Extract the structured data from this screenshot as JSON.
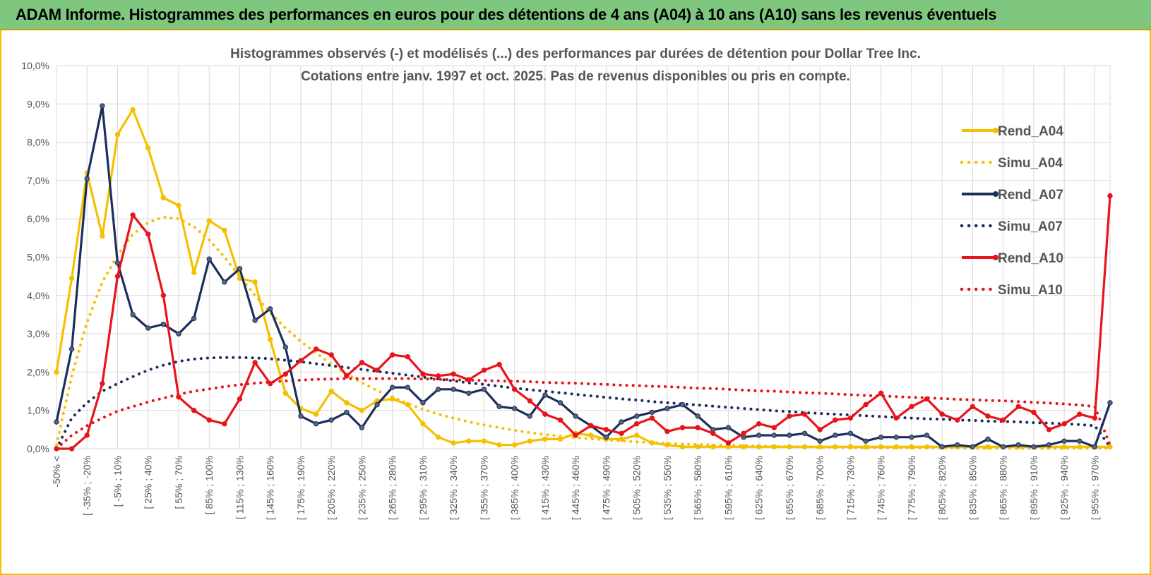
{
  "banner": {
    "title": "ADAM Informe. Histogrammes des performances en euros pour des détentions de 4 ans (A04) à 10 ans (A10) sans les revenus éventuels"
  },
  "colors": {
    "banner_bg": "#7fc77f",
    "a04": "#f5c000",
    "a07": "#1b2f5e",
    "a10": "#e8141b",
    "grid": "#d9d9d9",
    "text": "#555555"
  },
  "chart_data": {
    "type": "line",
    "title": "Histogrammes observés (-) et modélisés (...) des performances par durées de détention pour Dollar Tree Inc.",
    "subtitle": "Cotations entre janv. 1997 et oct. 2025. Pas de revenus disponibles ou pris en compte.",
    "ylim": [
      0,
      10
    ],
    "yticks": [
      "0,0%",
      "1,0%",
      "2,0%",
      "3,0%",
      "4,0%",
      "5,0%",
      "6,0%",
      "7,0%",
      "8,0%",
      "9,0%",
      "10,0%"
    ],
    "xlabels": [
      "-50% <",
      "[ -35% ; -20%",
      "[ -5% ; 10%",
      "[ 25% ; 40%",
      "[ 55% ; 70%",
      "[ 85% ; 100%",
      "[ 115% ; 130%",
      "[ 145% ; 160%",
      "[ 175% ; 190%",
      "[ 205% ; 220%",
      "[ 235% ; 250%",
      "[ 265% ; 280%",
      "[ 295% ; 310%",
      "[ 325% ; 340%",
      "[ 355% ; 370%",
      "[ 385% ; 400%",
      "[ 415% ; 430%",
      "[ 445% ; 460%",
      "[ 475% ; 490%",
      "[ 505% ; 520%",
      "[ 535% ; 550%",
      "[ 565% ; 580%",
      "[ 595% ; 610%",
      "[ 625% ; 640%",
      "[ 655% ; 670%",
      "[ 685% ; 700%",
      "[ 715% ; 730%",
      "[ 745% ; 760%",
      "[ 775% ; 790%",
      "[ 805% ; 820%",
      "[ 835% ; 850%",
      "[ 865% ; 880%",
      "[ 895% ; 910%",
      "[ 925% ; 940%",
      "[ 955% ; 970%"
    ],
    "legend_position": "right",
    "series": [
      {
        "name": "Rend_A04",
        "style": "solid",
        "color": "#f5c000",
        "values": [
          2.0,
          4.45,
          7.2,
          5.55,
          8.2,
          8.85,
          7.85,
          6.55,
          6.35,
          4.6,
          5.95,
          5.7,
          4.45,
          4.35,
          2.85,
          1.45,
          1.05,
          0.9,
          1.5,
          1.2,
          1.0,
          1.25,
          1.3,
          1.15,
          0.65,
          0.3,
          0.15,
          0.2,
          0.2,
          0.1,
          0.1,
          0.2,
          0.25,
          0.25,
          0.4,
          0.35,
          0.25,
          0.25,
          0.35,
          0.15,
          0.1,
          0.05,
          0.05,
          0.05,
          0.05,
          0.05,
          0.05,
          0.05,
          0.05,
          0.05,
          0.05,
          0.05,
          0.05,
          0.05,
          0.05,
          0.05,
          0.05,
          0.05,
          0.05,
          0.05,
          0.05,
          0.05,
          0.05,
          0.05,
          0.05,
          0.05,
          0.05,
          0.05,
          0.05,
          0.05
        ]
      },
      {
        "name": "Simu_A04",
        "style": "dotted",
        "color": "#f5c000",
        "values": [
          0.1,
          1.9,
          3.3,
          4.35,
          5.05,
          5.6,
          5.9,
          6.05,
          6.0,
          5.8,
          5.45,
          5.0,
          4.5,
          4.0,
          3.55,
          3.15,
          2.8,
          2.5,
          2.2,
          1.95,
          1.72,
          1.52,
          1.35,
          1.18,
          1.03,
          0.9,
          0.8,
          0.7,
          0.62,
          0.55,
          0.48,
          0.42,
          0.37,
          0.33,
          0.29,
          0.26,
          0.23,
          0.2,
          0.18,
          0.16,
          0.14,
          0.12,
          0.11,
          0.1,
          0.09,
          0.08,
          0.07,
          0.06,
          0.05,
          0.05,
          0.04,
          0.04,
          0.03,
          0.03,
          0.03,
          0.02,
          0.02,
          0.02,
          0.02,
          0.02,
          0.01,
          0.01,
          0.01,
          0.01,
          0.01,
          0.01,
          0.01,
          0.01,
          0.01,
          0.01
        ]
      },
      {
        "name": "Rend_A07",
        "style": "solid",
        "color": "#1b2f5e",
        "values": [
          0.7,
          2.6,
          7.05,
          8.95,
          4.85,
          3.5,
          3.15,
          3.25,
          3.0,
          3.4,
          4.95,
          4.35,
          4.7,
          3.35,
          3.65,
          2.65,
          0.85,
          0.65,
          0.75,
          0.95,
          0.55,
          1.15,
          1.6,
          1.6,
          1.2,
          1.55,
          1.55,
          1.45,
          1.55,
          1.1,
          1.05,
          0.85,
          1.4,
          1.2,
          0.85,
          0.6,
          0.3,
          0.7,
          0.85,
          0.95,
          1.05,
          1.15,
          0.85,
          0.5,
          0.55,
          0.3,
          0.35,
          0.35,
          0.35,
          0.4,
          0.2,
          0.35,
          0.4,
          0.2,
          0.3,
          0.3,
          0.3,
          0.35,
          0.05,
          0.1,
          0.05,
          0.25,
          0.05,
          0.1,
          0.05,
          0.1,
          0.2,
          0.2,
          0.05,
          1.2
        ]
      },
      {
        "name": "Simu_A07",
        "style": "dotted",
        "color": "#1b2f5e",
        "values": [
          0.0,
          0.8,
          1.2,
          1.5,
          1.7,
          1.88,
          2.05,
          2.18,
          2.28,
          2.34,
          2.37,
          2.38,
          2.38,
          2.37,
          2.35,
          2.31,
          2.27,
          2.22,
          2.17,
          2.12,
          2.07,
          2.02,
          1.97,
          1.92,
          1.87,
          1.82,
          1.77,
          1.72,
          1.68,
          1.63,
          1.58,
          1.54,
          1.5,
          1.46,
          1.42,
          1.38,
          1.34,
          1.3,
          1.27,
          1.23,
          1.2,
          1.17,
          1.14,
          1.11,
          1.08,
          1.05,
          1.02,
          0.99,
          0.97,
          0.94,
          0.92,
          0.9,
          0.88,
          0.86,
          0.84,
          0.82,
          0.8,
          0.78,
          0.77,
          0.75,
          0.74,
          0.72,
          0.71,
          0.7,
          0.68,
          0.67,
          0.65,
          0.63,
          0.6,
          0.05
        ]
      },
      {
        "name": "Rend_A10",
        "style": "solid",
        "color": "#e8141b",
        "values": [
          0.0,
          0.0,
          0.35,
          1.7,
          4.5,
          6.1,
          5.6,
          4.0,
          1.35,
          1.0,
          0.75,
          0.65,
          1.3,
          2.25,
          1.7,
          1.95,
          2.3,
          2.6,
          2.45,
          1.9,
          2.25,
          2.05,
          2.45,
          2.4,
          1.95,
          1.9,
          1.95,
          1.8,
          2.05,
          2.2,
          1.55,
          1.25,
          0.9,
          0.75,
          0.35,
          0.6,
          0.5,
          0.4,
          0.65,
          0.8,
          0.45,
          0.55,
          0.55,
          0.4,
          0.15,
          0.4,
          0.65,
          0.55,
          0.85,
          0.9,
          0.5,
          0.75,
          0.8,
          1.15,
          1.45,
          0.8,
          1.1,
          1.3,
          0.9,
          0.75,
          1.1,
          0.85,
          0.75,
          1.1,
          0.95,
          0.5,
          0.65,
          0.9,
          0.8,
          6.6
        ]
      },
      {
        "name": "Simu_A10",
        "style": "dotted",
        "color": "#e8141b",
        "values": [
          0.0,
          0.35,
          0.6,
          0.8,
          0.98,
          1.1,
          1.22,
          1.32,
          1.42,
          1.5,
          1.56,
          1.62,
          1.67,
          1.71,
          1.74,
          1.77,
          1.79,
          1.81,
          1.82,
          1.83,
          1.83,
          1.83,
          1.83,
          1.83,
          1.82,
          1.81,
          1.8,
          1.79,
          1.78,
          1.77,
          1.76,
          1.75,
          1.73,
          1.72,
          1.71,
          1.69,
          1.68,
          1.66,
          1.65,
          1.63,
          1.62,
          1.6,
          1.58,
          1.57,
          1.55,
          1.53,
          1.51,
          1.5,
          1.48,
          1.46,
          1.45,
          1.43,
          1.41,
          1.39,
          1.38,
          1.36,
          1.34,
          1.33,
          1.31,
          1.29,
          1.28,
          1.26,
          1.25,
          1.23,
          1.21,
          1.19,
          1.17,
          1.14,
          1.1,
          0.1
        ]
      }
    ]
  }
}
